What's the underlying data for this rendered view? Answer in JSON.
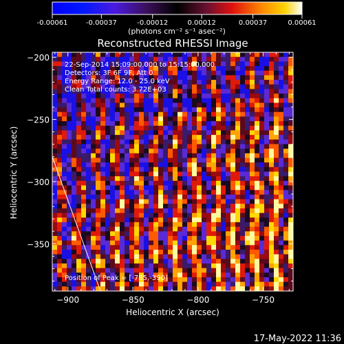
{
  "colorbar": {
    "ticks": [
      "-0.00061",
      "-0.00037",
      "-0.00012",
      "0.00012",
      "0.00037",
      "0.00061"
    ],
    "unit_label": "(photons cm⁻² s⁻¹ asec⁻²)"
  },
  "plot": {
    "title": "Reconstructed RHESSI Image",
    "annotations": [
      "22-Sep-2014 15:09:00.000 to 15:15:00.000",
      "Detectors: 3F 6F 9F, Att 0",
      "Energy Range: 12.0 - 25.0 keV",
      "Clean    Total counts: 3.72E+03"
    ],
    "peak_text": "Position of Peak = [-785,-390]"
  },
  "timestamp": "17-May-2022 11:36",
  "chart_data": {
    "type": "heatmap",
    "title": "Reconstructed RHESSI Image",
    "xlabel": "Heliocentric X (arcsec)",
    "ylabel": "Heliocentric Y (arcsec)",
    "xlim": [
      -912,
      -727
    ],
    "ylim": [
      -388,
      -196
    ],
    "xticks": [
      -900,
      -850,
      -800,
      -750
    ],
    "yticks": [
      -350,
      -300,
      -250,
      -200
    ],
    "color_range": [
      -0.00061,
      0.00061
    ],
    "colorbar_ticks": [
      -0.00061,
      -0.00037,
      -0.00012,
      0.00012,
      0.00037,
      0.00061
    ],
    "peak": [
      -785,
      -390
    ],
    "limb_line": [
      [
        -912,
        -280
      ],
      [
        -875,
        -388
      ]
    ]
  }
}
